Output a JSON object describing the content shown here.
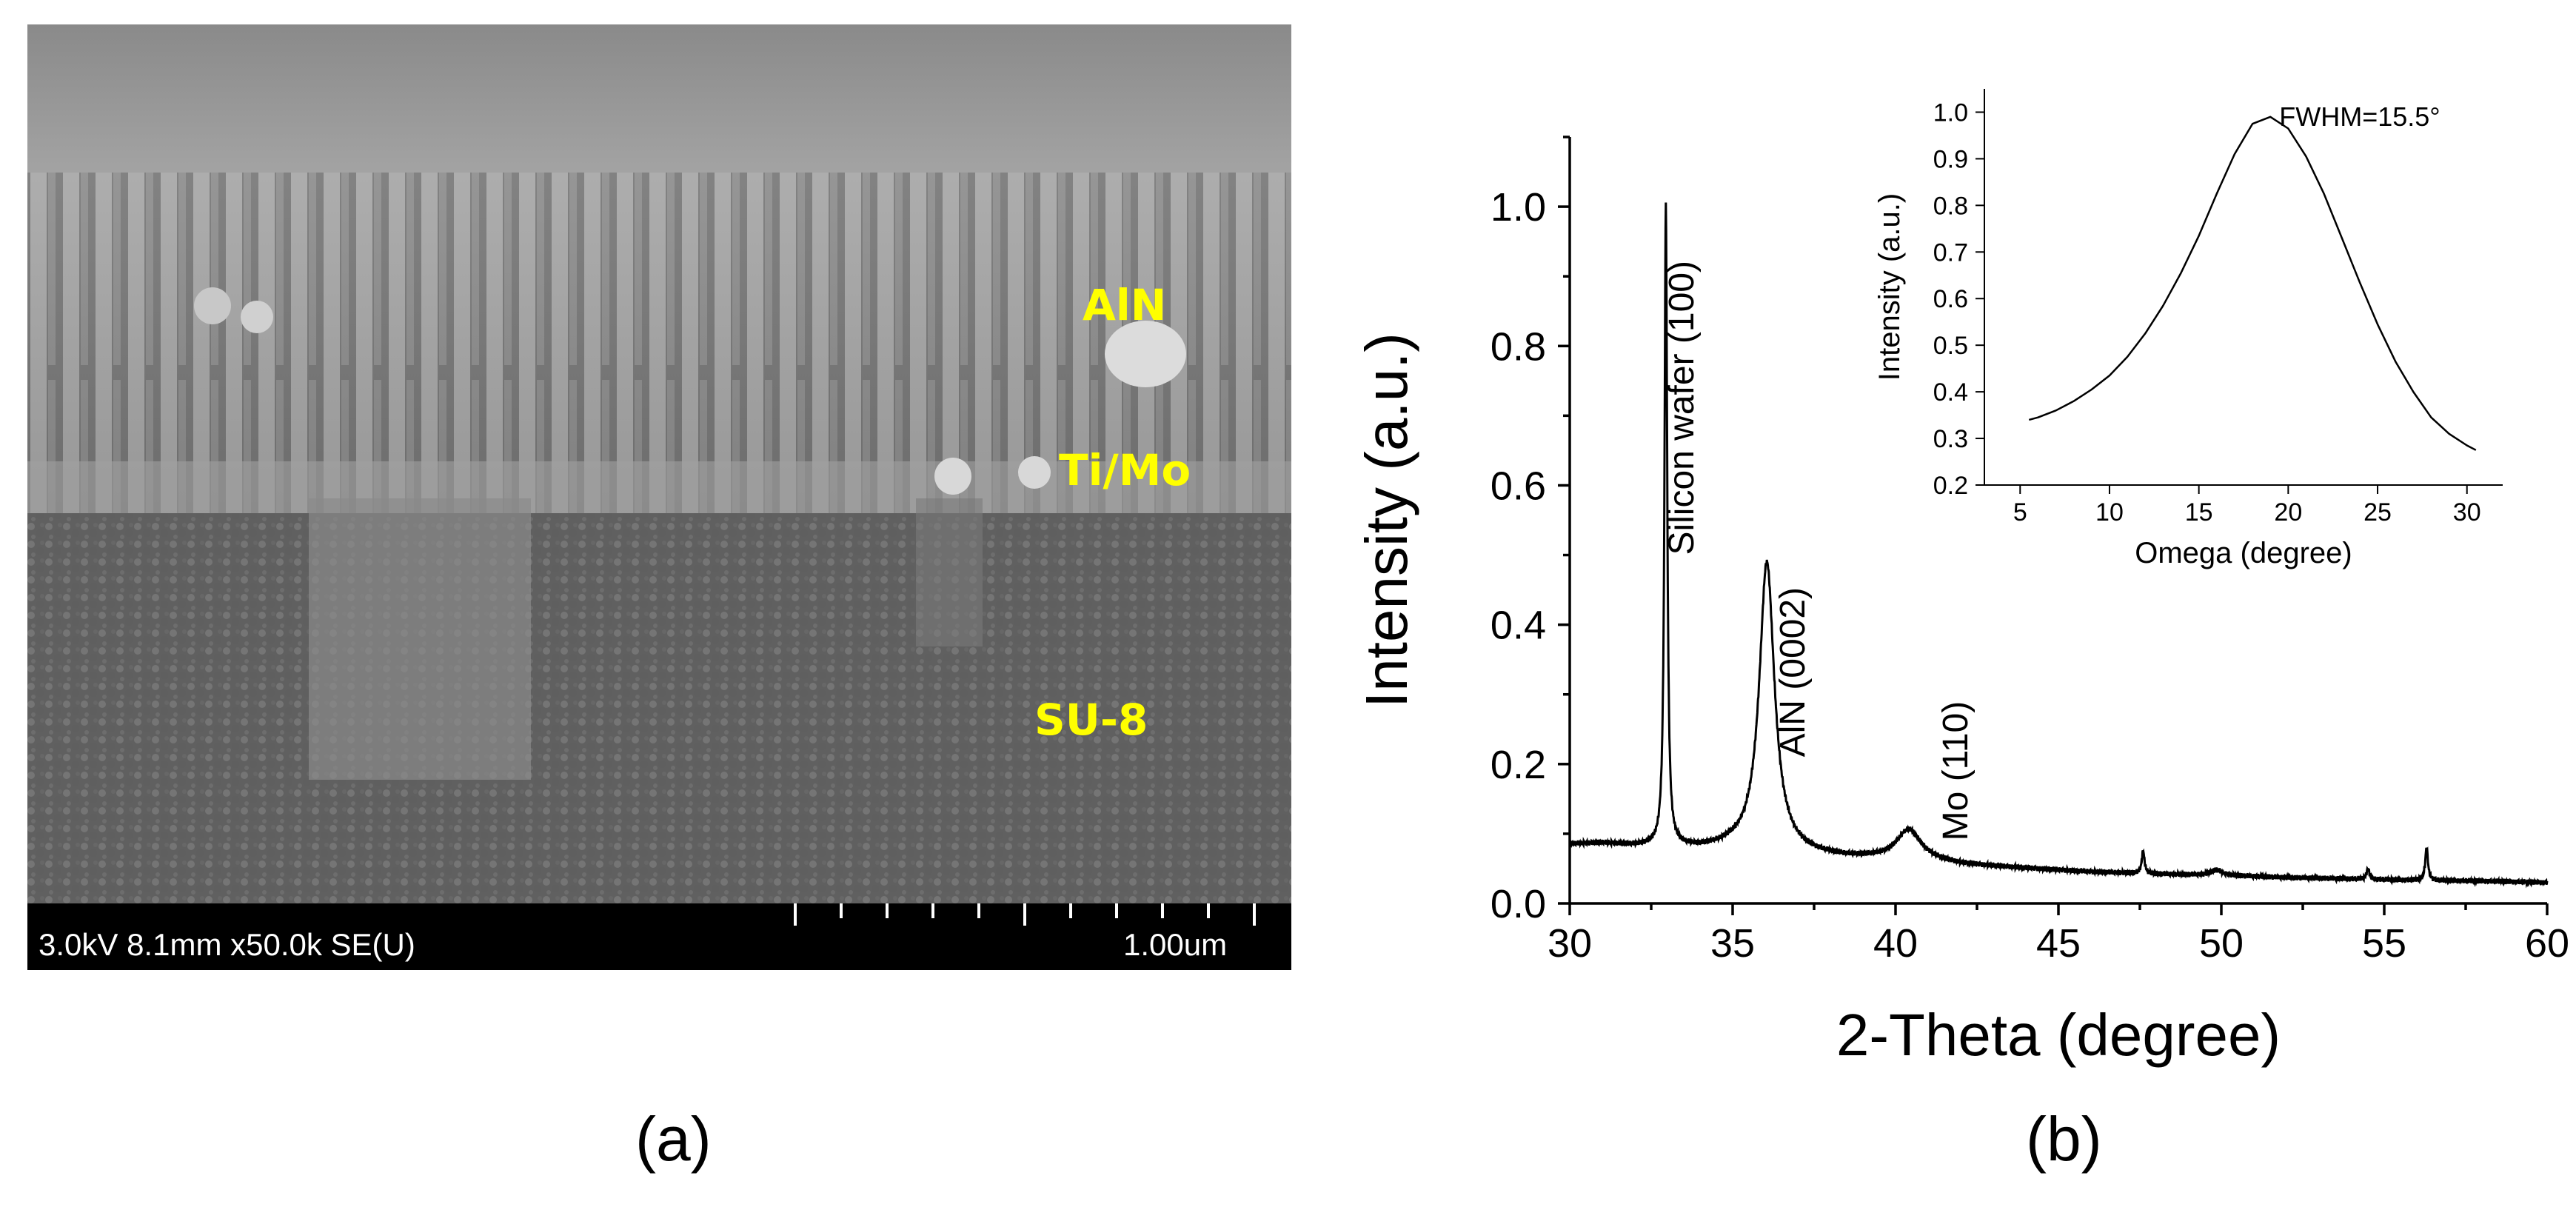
{
  "panel_a": {
    "caption": "(a)",
    "layer_labels": {
      "aln": "AlN",
      "timo": "Ti/Mo",
      "su8": "SU-8"
    },
    "info_bar": {
      "left_text": "3.0kV 8.1mm x50.0k SE(U)",
      "scale_text": "1.00um"
    },
    "colors": {
      "label": "#ffff00",
      "info_bar_bg": "#000000",
      "info_bar_text": "#ffffff"
    }
  },
  "panel_b": {
    "caption": "(b)"
  },
  "chart_data": [
    {
      "type": "line",
      "xlabel": "2-Theta (degree)",
      "ylabel": "Intensity (a.u.)",
      "xlim": [
        30,
        60
      ],
      "ylim": [
        0,
        1.1
      ],
      "xticks": [
        "30",
        "35",
        "40",
        "45",
        "50",
        "55",
        "60"
      ],
      "yticks": [
        "0.0",
        "0.2",
        "0.4",
        "0.6",
        "0.8",
        "1.0"
      ],
      "baseline": [
        [
          30,
          0.085
        ],
        [
          31,
          0.086
        ],
        [
          32,
          0.082
        ],
        [
          33.3,
          0.08
        ],
        [
          34,
          0.078
        ],
        [
          35,
          0.08
        ],
        [
          37,
          0.07
        ],
        [
          38.5,
          0.065
        ],
        [
          40,
          0.063
        ],
        [
          41,
          0.06
        ],
        [
          42,
          0.055
        ],
        [
          44,
          0.05
        ],
        [
          46,
          0.045
        ],
        [
          48,
          0.042
        ],
        [
          50,
          0.04
        ],
        [
          52,
          0.037
        ],
        [
          54,
          0.035
        ],
        [
          56,
          0.033
        ],
        [
          58,
          0.032
        ],
        [
          60,
          0.03
        ]
      ],
      "peaks": [
        {
          "x": 32.95,
          "height": 1.0,
          "width": 0.05
        },
        {
          "x": 36.05,
          "height": 0.49,
          "width": 0.28
        },
        {
          "x": 40.4,
          "height": 0.105,
          "width": 0.45
        },
        {
          "x": 47.6,
          "height": 0.075,
          "width": 0.05
        },
        {
          "x": 49.85,
          "height": 0.048,
          "width": 0.2
        },
        {
          "x": 54.5,
          "height": 0.05,
          "width": 0.05
        },
        {
          "x": 56.3,
          "height": 0.08,
          "width": 0.05
        }
      ],
      "annotations": [
        {
          "text": "Silicon wafer (100)",
          "x": 33.8,
          "y": 0.5
        },
        {
          "text": "AlN (0002)",
          "x": 37.2,
          "y": 0.21
        },
        {
          "text": "Mo (110)",
          "x": 42.2,
          "y": 0.09
        }
      ],
      "line_color": "#000000"
    },
    {
      "type": "line",
      "xlabel": "Omega (degree)",
      "ylabel": "Intensity (a.u.)",
      "xlim": [
        3,
        32
      ],
      "ylim": [
        0.2,
        1.05
      ],
      "xticks": [
        "5",
        "10",
        "15",
        "20",
        "25",
        "30"
      ],
      "yticks": [
        "0.2",
        "0.3",
        "0.4",
        "0.5",
        "0.6",
        "0.7",
        "0.8",
        "0.9",
        "1.0"
      ],
      "x": [
        5.5,
        6,
        7,
        8,
        9,
        10,
        11,
        12,
        13,
        14,
        15,
        16,
        17,
        18,
        19,
        20,
        21,
        22,
        23,
        24,
        25,
        26,
        27,
        28,
        29,
        30,
        30.5
      ],
      "y": [
        0.34,
        0.345,
        0.36,
        0.38,
        0.405,
        0.435,
        0.475,
        0.525,
        0.585,
        0.655,
        0.735,
        0.825,
        0.91,
        0.975,
        0.99,
        0.965,
        0.905,
        0.825,
        0.73,
        0.635,
        0.545,
        0.465,
        0.4,
        0.345,
        0.31,
        0.285,
        0.275
      ],
      "annotations": [
        {
          "text": "FWHM=15.5°"
        }
      ],
      "line_color": "#000000"
    }
  ]
}
